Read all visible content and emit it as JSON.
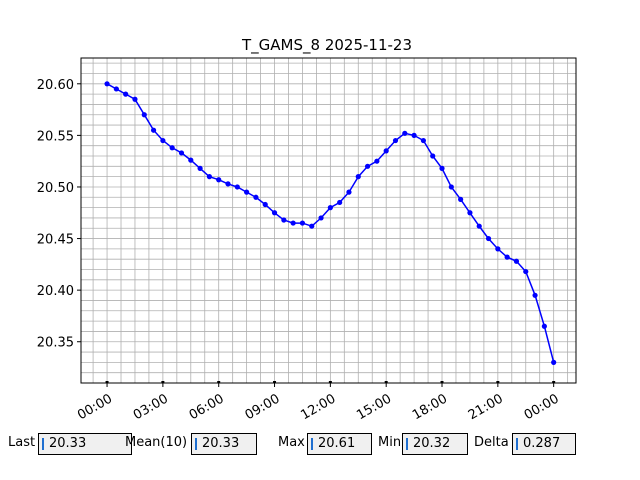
{
  "chart_data": {
    "type": "scatter",
    "title": "T_GAMS_8 2025-11-23",
    "xlabel": "",
    "ylabel": "",
    "x_tick_labels": [
      "00:00",
      "03:00",
      "06:00",
      "09:00",
      "12:00",
      "15:00",
      "18:00",
      "21:00",
      "00:00"
    ],
    "x_tick_hours": [
      0,
      3,
      6,
      9,
      12,
      15,
      18,
      21,
      24
    ],
    "xlim_hours": [
      -1.4,
      25.2
    ],
    "y_ticks": [
      20.35,
      20.4,
      20.45,
      20.5,
      20.55,
      20.6
    ],
    "y_tick_labels": [
      "20.35",
      "20.40",
      "20.45",
      "20.50",
      "20.55",
      "20.60"
    ],
    "ylim": [
      20.31,
      20.625
    ],
    "grid": true,
    "marker_color": "#0000ff",
    "series": [
      {
        "x_hours": [
          0,
          0.5,
          1,
          1.5,
          2,
          2.5,
          3,
          3.5,
          4,
          4.5,
          5,
          5.5,
          6,
          6.5,
          7,
          7.5,
          8,
          8.5,
          9,
          9.5,
          10,
          10.5,
          11,
          11.5,
          12,
          12.5,
          13,
          13.5,
          14,
          14.5,
          15,
          15.5,
          16,
          16.5,
          17,
          17.5,
          18,
          18.5,
          19,
          19.5,
          20,
          20.5,
          21,
          21.5,
          22,
          22.5,
          23,
          23.5,
          24
        ],
        "values": [
          20.6,
          20.595,
          20.59,
          20.585,
          20.57,
          20.555,
          20.545,
          20.538,
          20.533,
          20.526,
          20.518,
          20.51,
          20.507,
          20.503,
          20.5,
          20.495,
          20.49,
          20.483,
          20.475,
          20.468,
          20.465,
          20.465,
          20.462,
          20.47,
          20.48,
          20.485,
          20.495,
          20.51,
          20.52,
          20.525,
          20.535,
          20.545,
          20.552,
          20.55,
          20.545,
          20.53,
          20.518,
          20.5,
          20.488,
          20.475,
          20.462,
          20.45,
          20.44,
          20.432,
          20.428,
          20.418,
          20.395,
          20.365,
          20.33
        ]
      }
    ]
  },
  "stats": {
    "last_label": "Last",
    "last_value": "20.33",
    "mean_label": "Mean(10)",
    "mean_value": "20.33",
    "max_label": "Max",
    "max_value": "20.61",
    "min_label": "Min",
    "min_value": "20.32",
    "delta_label": "Delta",
    "delta_value": "0.287"
  }
}
